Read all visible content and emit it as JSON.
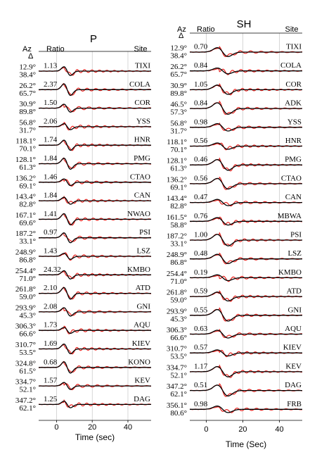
{
  "panels": [
    {
      "title": "P",
      "az_label": "Az",
      "delta_label": "Δ",
      "ratio_label": "Ratio",
      "site_label": "Site",
      "axis": {
        "label": "Time (sec)",
        "xlim": [
          -10,
          53
        ],
        "xticks": [
          0,
          20,
          40
        ]
      },
      "traces": [
        {
          "az": "12.9°",
          "delta": "38.4°",
          "ratio": "1.13",
          "site": "TIXI"
        },
        {
          "az": "26.2°",
          "delta": "65.7°",
          "ratio": "2.37",
          "site": "COLA"
        },
        {
          "az": "30.9°",
          "delta": "89.8°",
          "ratio": "1.50",
          "site": "COR"
        },
        {
          "az": "56.8°",
          "delta": "31.7°",
          "ratio": "2.06",
          "site": "YSS"
        },
        {
          "az": "118.1°",
          "delta": "70.1°",
          "ratio": "1.74",
          "site": "HNR"
        },
        {
          "az": "128.1°",
          "delta": "61.3°",
          "ratio": "1.84",
          "site": "PMG"
        },
        {
          "az": "136.2°",
          "delta": "69.1°",
          "ratio": "1.46",
          "site": "CTAO"
        },
        {
          "az": "143.4°",
          "delta": "82.8°",
          "ratio": "1.84",
          "site": "CAN"
        },
        {
          "az": "167.1°",
          "delta": "69.6°",
          "ratio": "1.41",
          "site": "NWAO"
        },
        {
          "az": "187.2°",
          "delta": "33.1°",
          "ratio": "0.97",
          "site": "PSI"
        },
        {
          "az": "248.9°",
          "delta": "86.8°",
          "ratio": "1.43",
          "site": "LSZ"
        },
        {
          "az": "254.4°",
          "delta": "71.0°",
          "ratio": "24.32",
          "site": "KMBO"
        },
        {
          "az": "261.8°",
          "delta": "59.0°",
          "ratio": "2.10",
          "site": "ATD"
        },
        {
          "az": "293.9°",
          "delta": "45.3°",
          "ratio": "2.08",
          "site": "GNI"
        },
        {
          "az": "306.3°",
          "delta": "66.6°",
          "ratio": "1.73",
          "site": "AQU"
        },
        {
          "az": "310.7°",
          "delta": "53.5°",
          "ratio": "1.69",
          "site": "KIEV"
        },
        {
          "az": "324.8°",
          "delta": "61.5°",
          "ratio": "0.68",
          "site": "KONO"
        },
        {
          "az": "334.7°",
          "delta": "52.1°",
          "ratio": "1.57",
          "site": "KEV"
        },
        {
          "az": "347.2°",
          "delta": "62.1°",
          "ratio": "1.25",
          "site": "DAG"
        }
      ]
    },
    {
      "title": "SH",
      "az_label": "Az",
      "delta_label": "Δ",
      "ratio_label": "Ratio",
      "site_label": "Site",
      "axis": {
        "label": "Time (Sec)",
        "xlim": [
          -9,
          52.5
        ],
        "xticks": [
          0,
          20,
          40
        ]
      },
      "traces": [
        {
          "az": "12.9°",
          "delta": "38.4°",
          "ratio": "0.70",
          "site": "TIXI"
        },
        {
          "az": "26.2°",
          "delta": "65.7°",
          "ratio": "0.84",
          "site": "COLA"
        },
        {
          "az": "30.9°",
          "delta": "89.8°",
          "ratio": "1.05",
          "site": "COR"
        },
        {
          "az": "46.5°",
          "delta": "57.3°",
          "ratio": "0.84",
          "site": "ADK"
        },
        {
          "az": "56.8°",
          "delta": "31.7°",
          "ratio": "0.98",
          "site": "YSS"
        },
        {
          "az": "118.1°",
          "delta": "70.1°",
          "ratio": "0.56",
          "site": "HNR"
        },
        {
          "az": "128.1°",
          "delta": "61.3°",
          "ratio": "0.46",
          "site": "PMG"
        },
        {
          "az": "136.2°",
          "delta": "69.1°",
          "ratio": "0.56",
          "site": "CTAO"
        },
        {
          "az": "143.4°",
          "delta": "82.8°",
          "ratio": "0.47",
          "site": "CAN"
        },
        {
          "az": "161.5°",
          "delta": "58.8°",
          "ratio": "0.76",
          "site": "MBWA"
        },
        {
          "az": "187.2°",
          "delta": "33.1°",
          "ratio": "1.00",
          "site": "PSI"
        },
        {
          "az": "248.9°",
          "delta": "86.8°",
          "ratio": "0.48",
          "site": "LSZ"
        },
        {
          "az": "254.4°",
          "delta": "71.0°",
          "ratio": "0.19",
          "site": "KMBO"
        },
        {
          "az": "261.8°",
          "delta": "59.0°",
          "ratio": "0.59",
          "site": "ATD"
        },
        {
          "az": "293.9°",
          "delta": "45.3°",
          "ratio": "0.55",
          "site": "GNI"
        },
        {
          "az": "306.3°",
          "delta": "66.6°",
          "ratio": "0.63",
          "site": "AQU"
        },
        {
          "az": "310.7°",
          "delta": "53.5°",
          "ratio": "0.57",
          "site": "KIEV"
        },
        {
          "az": "334.7°",
          "delta": "52.1°",
          "ratio": "1.17",
          "site": "KEV"
        },
        {
          "az": "347.2°",
          "delta": "62.1°",
          "ratio": "0.51",
          "site": "DAG"
        },
        {
          "az": "356.1°",
          "delta": "80.6°",
          "ratio": "0.98",
          "site": "FRB"
        }
      ]
    }
  ]
}
